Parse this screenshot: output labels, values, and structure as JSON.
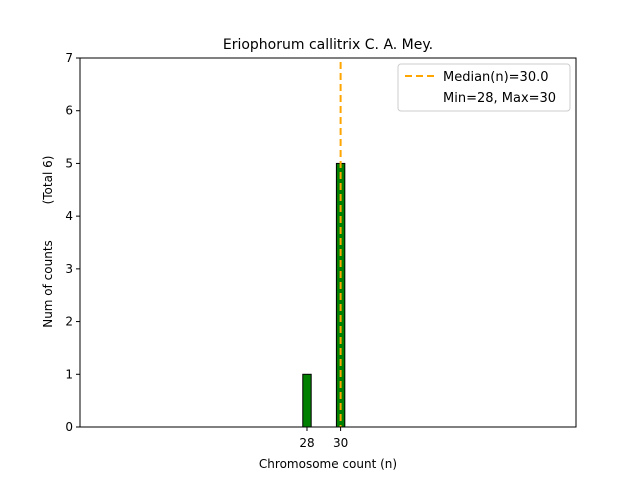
{
  "chart_data": {
    "type": "bar",
    "title": "Eriophorum callitrix C. A. Mey.",
    "xlabel": "Chromosome count (n)",
    "ylabel": "Num of counts",
    "ylabel_total": "(Total 6)",
    "x": [
      28,
      30
    ],
    "values": [
      1,
      5
    ],
    "xticks": [
      "28",
      "30"
    ],
    "yticks": [
      "0",
      "1",
      "2",
      "3",
      "4",
      "5",
      "6",
      "7"
    ],
    "ylim": [
      0,
      7
    ],
    "xlim": [
      14.5,
      44
    ],
    "median": 30.0,
    "min": 28,
    "max": 30,
    "legend": {
      "position": "top-right",
      "entries": [
        "Median(n)=30.0",
        "Min=28, Max=30"
      ]
    },
    "colors": {
      "bar_fill": "#008000",
      "bar_edge": "#000000",
      "median_line": "#FFA500"
    }
  }
}
